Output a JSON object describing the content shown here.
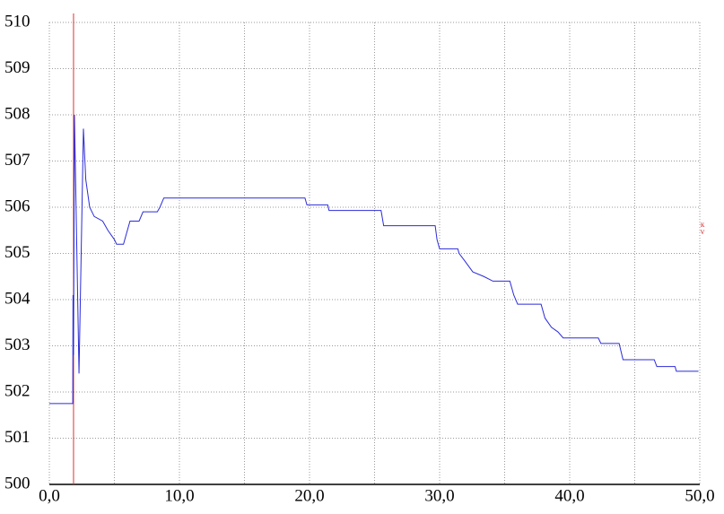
{
  "chart_data": {
    "type": "line",
    "x": [
      0,
      1.8,
      1.82,
      1.86,
      1.93,
      2.28,
      2.62,
      2.8,
      3.1,
      3.45,
      4.1,
      4.5,
      5.0,
      5.17,
      5.7,
      5.9,
      6.2,
      6.9,
      7.2,
      8.3,
      8.5,
      8.8,
      19.65,
      19.8,
      21.4,
      21.5,
      25.5,
      25.7,
      29.66,
      29.8,
      30.0,
      31.4,
      31.5,
      31.9,
      32.55,
      33.4,
      34.1,
      35.4,
      35.7,
      36.0,
      37.8,
      38.1,
      38.6,
      39.1,
      39.5,
      42.2,
      42.4,
      43.8,
      44.1,
      46.5,
      46.7,
      48.1,
      48.2,
      49.9
    ],
    "series": [
      {
        "color": "#2b2bd9",
        "values": [
          501.75,
          501.75,
          504.1,
          502.8,
          508.0,
          502.4,
          507.7,
          506.6,
          506.0,
          505.8,
          505.7,
          505.5,
          505.3,
          505.2,
          505.2,
          505.4,
          505.7,
          505.7,
          505.9,
          505.9,
          506.0,
          506.2,
          506.2,
          506.05,
          506.05,
          505.93,
          505.93,
          505.6,
          505.6,
          505.3,
          505.1,
          505.1,
          505.0,
          504.85,
          504.6,
          504.5,
          504.4,
          504.4,
          504.1,
          503.9,
          503.9,
          503.6,
          503.4,
          503.3,
          503.17,
          503.17,
          503.05,
          503.05,
          502.7,
          502.7,
          502.55,
          502.55,
          502.45,
          502.45
        ]
      }
    ],
    "xlim": [
      0,
      50
    ],
    "ylim": [
      500,
      510
    ],
    "xticks": [
      {
        "value": 0,
        "label": "0,0"
      },
      {
        "value": 10,
        "label": "10,0"
      },
      {
        "value": 20,
        "label": "20,0"
      },
      {
        "value": 30,
        "label": "30,0"
      },
      {
        "value": 40,
        "label": "40,0"
      },
      {
        "value": 50,
        "label": "50,0"
      }
    ],
    "xgrid": [
      5,
      15,
      25,
      35,
      45
    ],
    "yticks": [
      500,
      501,
      502,
      503,
      504,
      505,
      506,
      507,
      508,
      509,
      510
    ],
    "grid": true,
    "cursor_x": 1.86,
    "cursor_color": "#e03030",
    "marker_label": [
      "к",
      "v"
    ]
  }
}
